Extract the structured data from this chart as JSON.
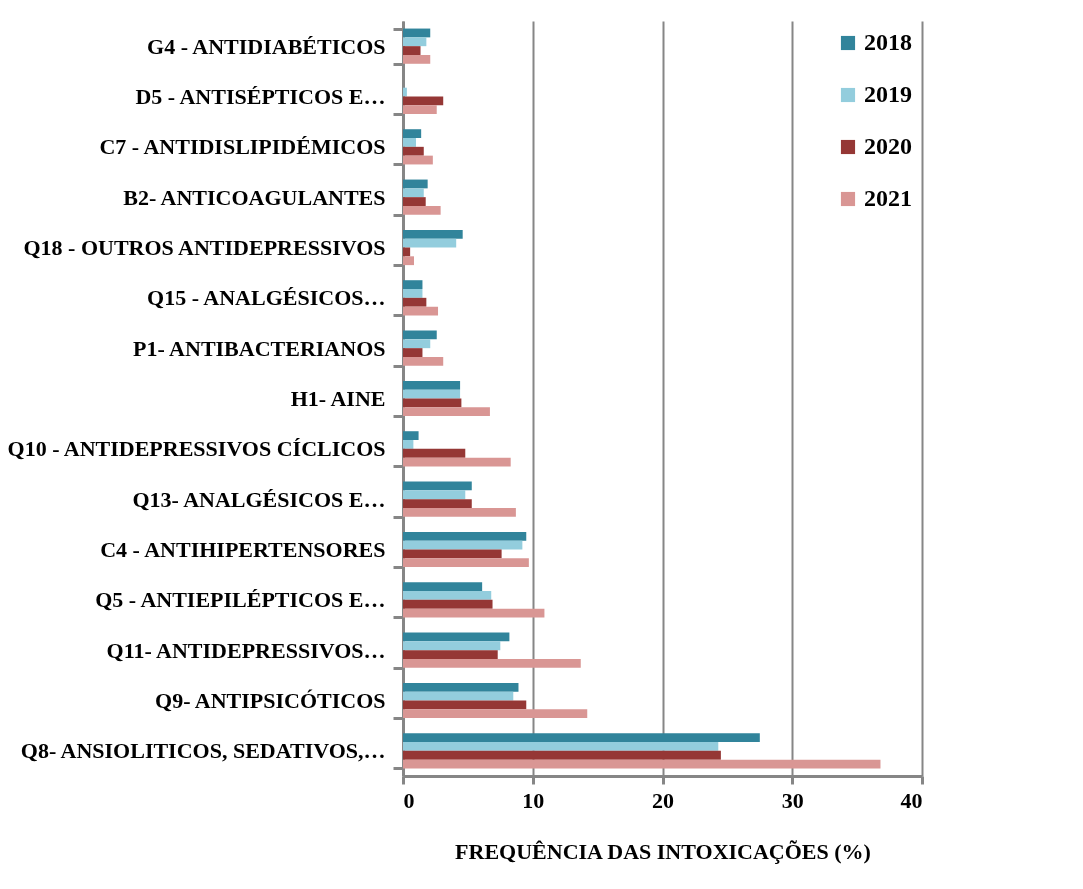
{
  "chart_data": {
    "type": "bar",
    "orientation": "horizontal",
    "xlabel": "FREQUÊNCIA DAS INTOXICAÇÕES (%)",
    "categories": [
      "G4 - ANTIDIABÉTICOS",
      "D5 -  ANTISÉPTICOS E…",
      "C7 - ANTIDISLIPIDÉMICOS",
      "B2- ANTICOAGULANTES",
      "Q18 - OUTROS ANTIDEPRESSIVOS",
      "Q15 - ANALGÉSICOS…",
      "P1- ANTIBACTERIANOS",
      "H1- AINE",
      "Q10 - ANTIDEPRESSIVOS CÍCLICOS",
      "Q13- ANALGÉSICOS E…",
      "C4 - ANTIHIPERTENSORES",
      "Q5 - ANTIEPILÉPTICOS E…",
      "Q11- ANTIDEPRESSIVOS…",
      "Q9- ANTIPSICÓTICOS",
      "Q8- ANSIOLITICOS, SEDATIVOS,…"
    ],
    "series": [
      {
        "name": "2018",
        "color": "#31849b",
        "values": [
          2.1,
          null,
          1.4,
          1.9,
          4.6,
          1.5,
          2.6,
          4.4,
          1.2,
          5.3,
          9.5,
          6.1,
          8.2,
          8.9,
          27.5
        ]
      },
      {
        "name": "2019",
        "color": "#93cddd",
        "values": [
          1.8,
          0.3,
          1.0,
          1.6,
          4.1,
          1.5,
          2.1,
          4.4,
          0.8,
          4.8,
          9.2,
          6.8,
          7.5,
          8.5,
          24.3
        ]
      },
      {
        "name": "2020",
        "color": "#953735",
        "values": [
          1.35,
          3.1,
          1.6,
          1.75,
          0.55,
          1.8,
          1.5,
          4.5,
          4.8,
          5.3,
          7.6,
          6.9,
          7.3,
          9.5,
          24.5
        ]
      },
      {
        "name": "2021",
        "color": "#d99694",
        "values": [
          2.1,
          2.6,
          2.3,
          2.9,
          0.85,
          2.7,
          3.1,
          6.7,
          8.3,
          8.7,
          9.7,
          10.9,
          13.7,
          14.2,
          36.8
        ]
      }
    ],
    "xlim": [
      0,
      40
    ],
    "xticks": [
      0,
      10,
      20,
      30,
      40
    ],
    "grid": "x",
    "legend": "top right"
  }
}
